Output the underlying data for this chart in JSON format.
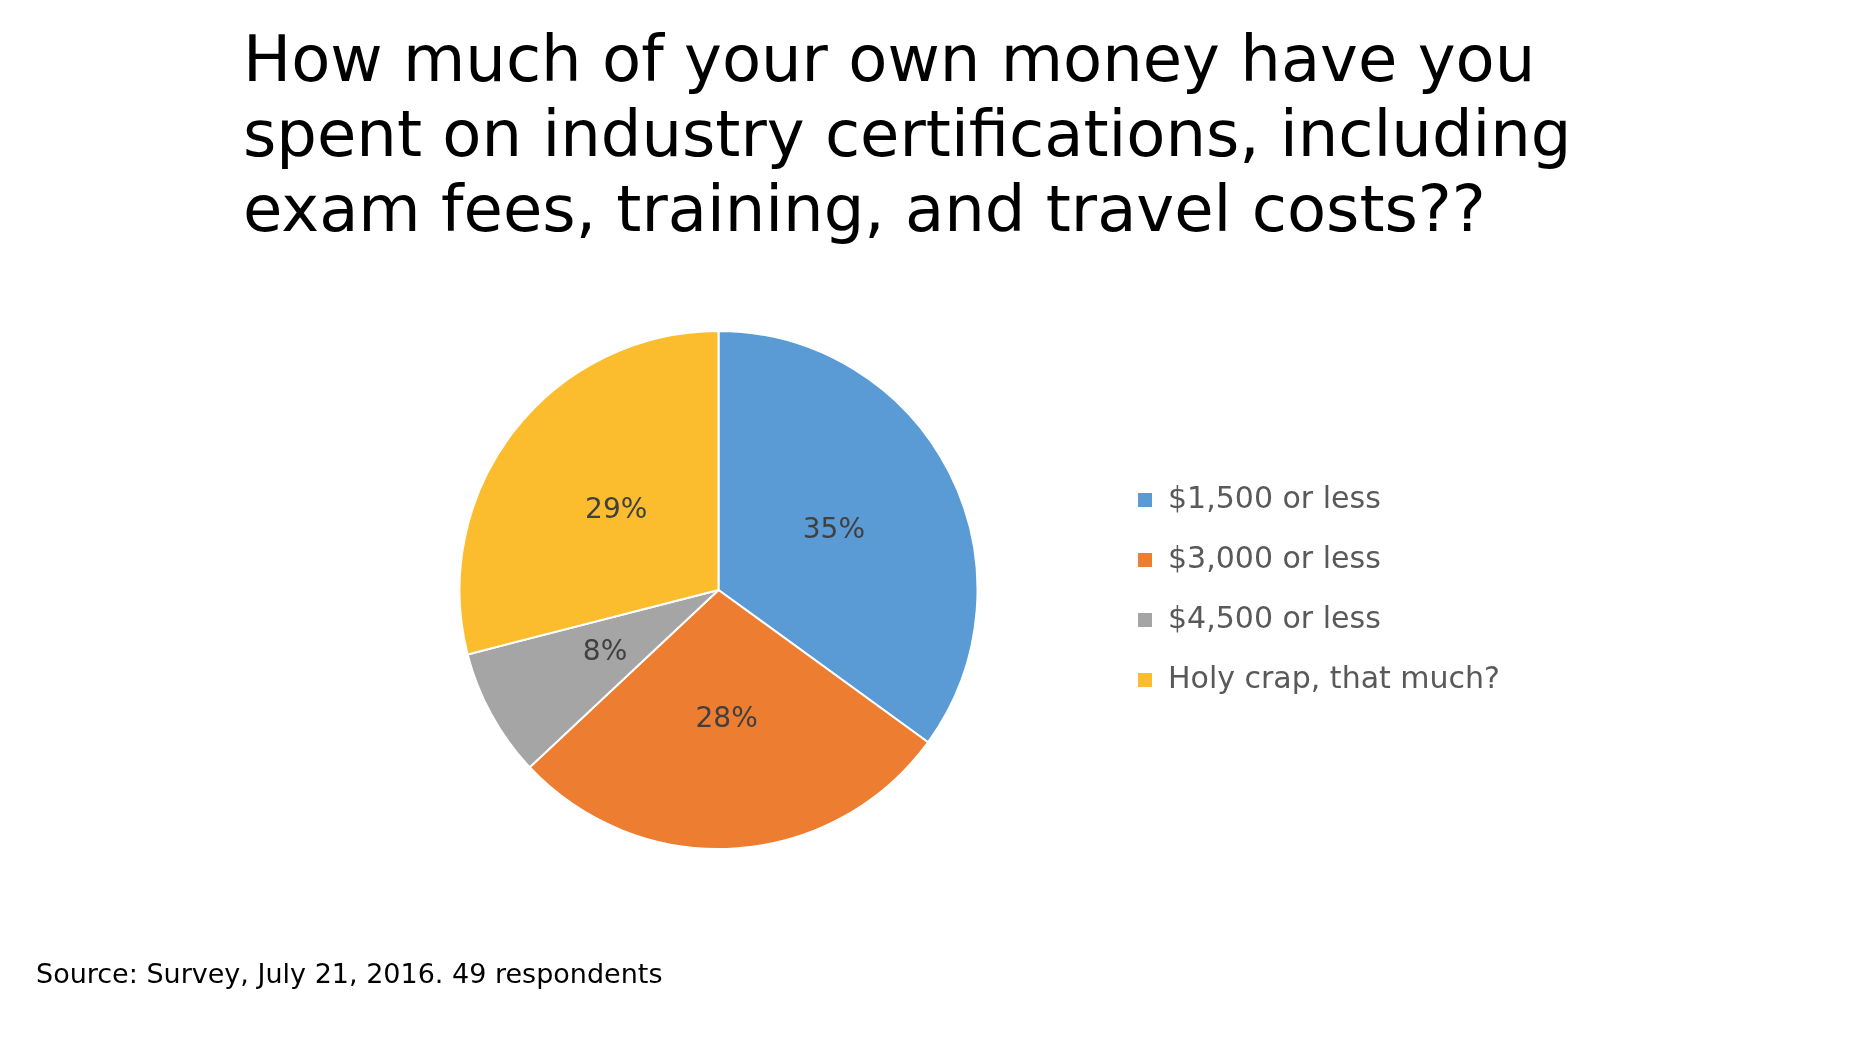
{
  "chart_data": {
    "type": "pie",
    "title": "How much of your own money have you spent on industry certifications, including exam fees, training, and travel costs??",
    "categories": [
      "$1,500 or less",
      "$3,000 or less",
      "$4,500 or less",
      "Holy crap, that much?"
    ],
    "values": [
      35,
      28,
      8,
      29
    ],
    "colors": [
      "#5b9bd5",
      "#ed7d31",
      "#a5a5a5",
      "#fbbd2d"
    ],
    "value_labels": [
      "35%",
      "28%",
      "8%",
      "29%"
    ],
    "legend": "right",
    "annotations": [
      "Source: Survey, July 21, 2016. 49 respondents"
    ]
  }
}
